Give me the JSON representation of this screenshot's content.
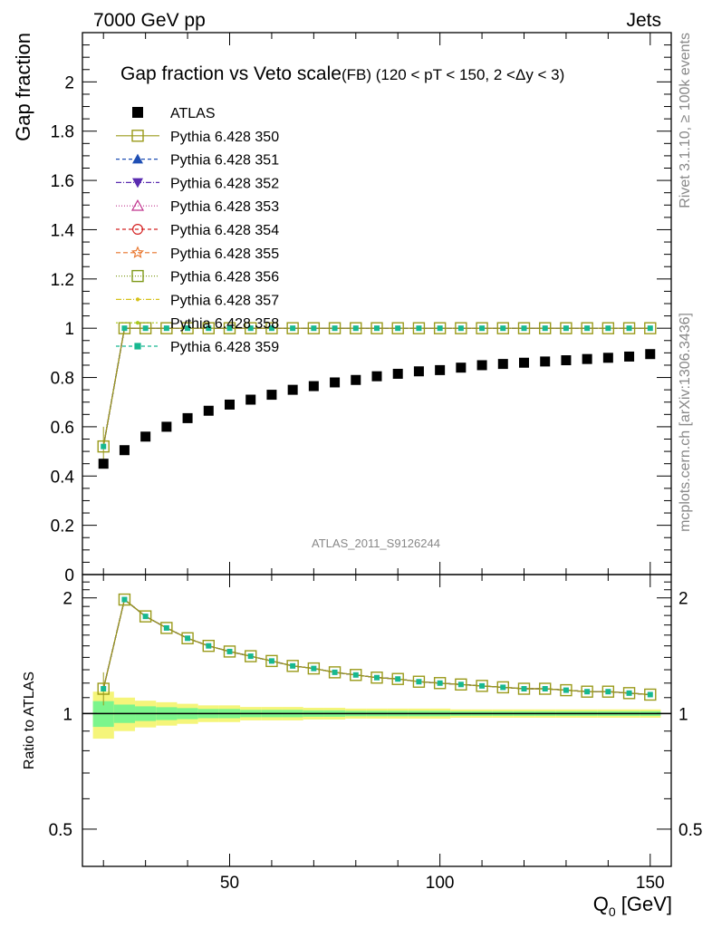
{
  "header": {
    "left": "7000 GeV pp",
    "right": "Jets",
    "side_top": "Rivet 3.1.10, ≥ 100k events",
    "side_bottom": "mcplots.cern.ch [arXiv:1306.3436]",
    "watermark": "ATLAS_2011_S9126244"
  },
  "chart_data": {
    "type": "scatter",
    "title": "Gap fraction vs Veto scale",
    "subtitle": "(FB) (120 < pT < 150, 2 <Δy < 3)",
    "xlabel": "Q",
    "xlabel_sub": "0",
    "xlabel_unit": " [GeV]",
    "ylabel_top": "Gap fraction",
    "ylabel_bottom": "Ratio to ATLAS",
    "xlim": [
      15,
      155
    ],
    "ylim_top": [
      0,
      2.2
    ],
    "ylim_bottom": [
      0.4,
      2.3
    ],
    "x_ticks": [
      "50",
      "100",
      "150"
    ],
    "y_ticks_top": [
      "0",
      "0.2",
      "0.4",
      "0.6",
      "0.8",
      "1",
      "1.2",
      "1.4",
      "1.6",
      "1.8",
      "2"
    ],
    "y_ticks_bottom": [
      "0.5",
      "1",
      "2"
    ],
    "x": [
      20,
      25,
      30,
      35,
      40,
      45,
      50,
      55,
      60,
      65,
      70,
      75,
      80,
      85,
      90,
      95,
      100,
      105,
      110,
      115,
      120,
      125,
      130,
      135,
      140,
      145,
      150
    ],
    "atlas": [
      0.45,
      0.505,
      0.56,
      0.6,
      0.635,
      0.665,
      0.69,
      0.71,
      0.73,
      0.75,
      0.765,
      0.78,
      0.79,
      0.805,
      0.815,
      0.825,
      0.83,
      0.84,
      0.85,
      0.855,
      0.86,
      0.865,
      0.87,
      0.875,
      0.88,
      0.885,
      0.895
    ],
    "mc": [
      0.52,
      1.0,
      1.0,
      1.0,
      1.0,
      1.0,
      1.0,
      1.0,
      1.0,
      1.0,
      1.0,
      1.0,
      1.0,
      1.0,
      1.0,
      1.0,
      1.0,
      1.0,
      1.0,
      1.0,
      1.0,
      1.0,
      1.0,
      1.0,
      1.0,
      1.0,
      1.0
    ],
    "mc_ratio": [
      1.16,
      1.98,
      1.79,
      1.67,
      1.57,
      1.5,
      1.45,
      1.41,
      1.37,
      1.33,
      1.31,
      1.28,
      1.26,
      1.24,
      1.23,
      1.21,
      1.2,
      1.19,
      1.18,
      1.17,
      1.16,
      1.16,
      1.15,
      1.14,
      1.14,
      1.13,
      1.12
    ],
    "legend": [
      {
        "label": "ATLAS",
        "color": "#000000",
        "marker": "filled-square",
        "dash": ""
      },
      {
        "label": "Pythia 6.428 350",
        "color": "#9a9a1a",
        "marker": "open-square",
        "dash": ""
      },
      {
        "label": "Pythia 6.428 351",
        "color": "#1f4fb4",
        "marker": "filled-triangle-up",
        "dash": "4,3"
      },
      {
        "label": "Pythia 6.428 352",
        "color": "#5a2bb0",
        "marker": "filled-triangle-down",
        "dash": "6,2,1,2"
      },
      {
        "label": "Pythia 6.428 353",
        "color": "#c0348e",
        "marker": "open-triangle-up",
        "dash": "1,2"
      },
      {
        "label": "Pythia 6.428 354",
        "color": "#d42020",
        "marker": "open-circle",
        "dash": "4,3"
      },
      {
        "label": "Pythia 6.428 355",
        "color": "#e8742a",
        "marker": "open-star",
        "dash": "5,3"
      },
      {
        "label": "Pythia 6.428 356",
        "color": "#7f9a1a",
        "marker": "open-square",
        "dash": "1,2"
      },
      {
        "label": "Pythia 6.428 357",
        "color": "#d6c21a",
        "marker": "small-dot",
        "dash": "6,2,1,2"
      },
      {
        "label": "Pythia 6.428 358",
        "color": "#a8c81a",
        "marker": "small-dot",
        "dash": "2,2"
      },
      {
        "label": "Pythia 6.428 359",
        "color": "#17b890",
        "marker": "filled-square-small",
        "dash": "4,3"
      }
    ],
    "band_inner_color": "#7cf58c",
    "band_outer_color": "#f5f57a"
  }
}
